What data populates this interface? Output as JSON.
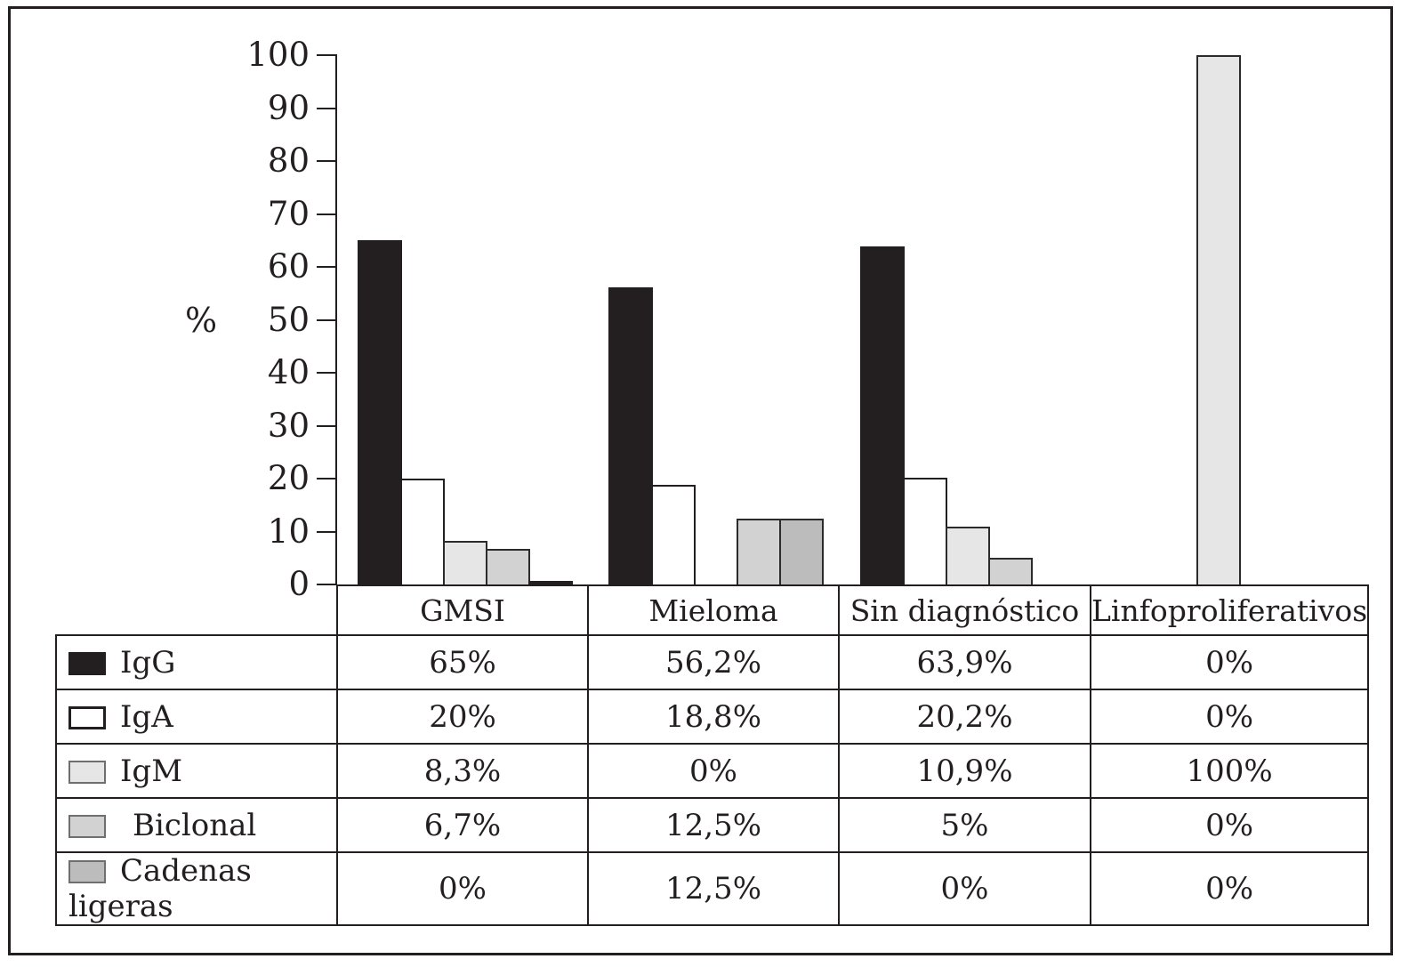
{
  "chart_data": {
    "type": "bar",
    "title": "",
    "ylabel": "%",
    "xlabel": "",
    "ylim": [
      0,
      100
    ],
    "ytick_step": 10,
    "yticks": [
      "100",
      "90",
      "80",
      "70",
      "60",
      "50",
      "40",
      "30",
      "20",
      "10",
      "0"
    ],
    "grid": false,
    "legend_position": "table-left",
    "categories": [
      "GMSI",
      "Mieloma",
      "Sin diagnóstico",
      "Linfoproliferativos"
    ],
    "series": [
      {
        "name": "IgG",
        "fill": "#231f20",
        "border": "#231f20",
        "values": [
          65,
          56.2,
          63.9,
          0
        ]
      },
      {
        "name": "IgA",
        "fill": "#ffffff",
        "border": "#231f20",
        "values": [
          20,
          18.8,
          20.2,
          0
        ]
      },
      {
        "name": "IgM",
        "fill": "#e6e6e6",
        "border": "#2d2a2b",
        "values": [
          8.3,
          0,
          10.9,
          100
        ]
      },
      {
        "name": "Biclonal",
        "fill": "#d2d2d2",
        "border": "#2d2a2b",
        "values": [
          6.7,
          12.5,
          5,
          0
        ]
      },
      {
        "name": "Cadenas ligeras",
        "fill": "#bcbcbc",
        "border": "#2d2a2b",
        "values": [
          0,
          12.5,
          0,
          0
        ]
      }
    ],
    "zero_slivers": [
      {
        "series": "Cadenas ligeras",
        "category": "GMSI"
      }
    ]
  },
  "table": {
    "columns": [
      "GMSI",
      "Mieloma",
      "Sin diagnóstico",
      "Linfoproliferativos"
    ],
    "rows": [
      {
        "label": "IgG",
        "values": [
          "65%",
          "56,2%",
          "63,9%",
          "0%"
        ]
      },
      {
        "label": "IgA",
        "values": [
          "20%",
          "18,8%",
          "20,2%",
          "0%"
        ]
      },
      {
        "label": "IgM",
        "values": [
          "8,3%",
          "0%",
          "10,9%",
          "100%"
        ]
      },
      {
        "label": "Biclonal",
        "values": [
          "6,7%",
          "12,5%",
          "5%",
          "0%"
        ]
      },
      {
        "label": "Cadenas ligeras",
        "values": [
          "0%",
          "12,5%",
          "0%",
          "0%"
        ]
      }
    ]
  }
}
